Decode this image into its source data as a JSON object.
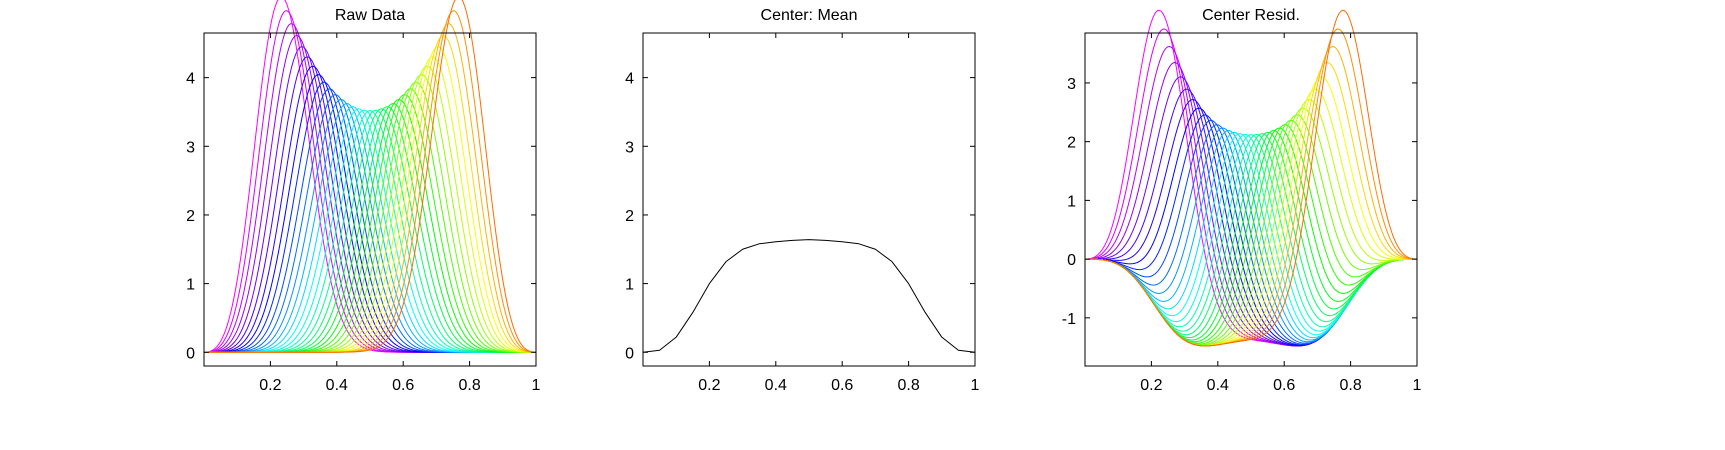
{
  "chart_data": [
    {
      "type": "line",
      "title": "Raw Data",
      "xlim": [
        0,
        1
      ],
      "ylim": [
        -0.2,
        4.65
      ],
      "xticks": [
        0.2,
        0.4,
        0.6,
        0.8,
        1
      ],
      "xtick_labels": [
        "0.2",
        "0.4",
        "0.6",
        "0.8",
        "1"
      ],
      "yticks": [
        0,
        1,
        2,
        3,
        4
      ],
      "ytick_labels": [
        "0",
        "1",
        "2",
        "3",
        "4"
      ],
      "grid": false,
      "series_count": 33,
      "series_description": "Family of unimodal bumps whose peaks move from x≈0.19 (magenta, height ≈4.45) through a trough near x≈0.5 (height ≈3.52) to x≈0.81 (orange, height ≈4.45), colored with a rainbow colormap.",
      "peak_envelope": {
        "x": [
          0.19,
          0.25,
          0.3,
          0.35,
          0.4,
          0.45,
          0.5,
          0.55,
          0.6,
          0.65,
          0.7,
          0.75,
          0.81
        ],
        "y": [
          4.45,
          4.15,
          3.95,
          3.8,
          3.68,
          3.57,
          3.52,
          3.57,
          3.68,
          3.8,
          3.95,
          4.15,
          4.45
        ]
      }
    },
    {
      "type": "line",
      "title": "Center: Mean",
      "xlim": [
        0,
        1
      ],
      "ylim": [
        -0.2,
        4.65
      ],
      "xticks": [
        0.2,
        0.4,
        0.6,
        0.8,
        1
      ],
      "xtick_labels": [
        "0.2",
        "0.4",
        "0.6",
        "0.8",
        "1"
      ],
      "yticks": [
        0,
        1,
        2,
        3,
        4
      ],
      "ytick_labels": [
        "0",
        "1",
        "2",
        "3",
        "4"
      ],
      "grid": false,
      "series": [
        {
          "color": "#000000",
          "x": [
            0.0,
            0.05,
            0.1,
            0.15,
            0.2,
            0.25,
            0.3,
            0.35,
            0.4,
            0.45,
            0.5,
            0.55,
            0.6,
            0.65,
            0.7,
            0.75,
            0.8,
            0.85,
            0.9,
            0.95,
            1.0
          ],
          "y": [
            0.0,
            0.03,
            0.22,
            0.58,
            1.0,
            1.32,
            1.5,
            1.58,
            1.61,
            1.63,
            1.64,
            1.63,
            1.61,
            1.58,
            1.5,
            1.32,
            1.0,
            0.58,
            0.22,
            0.03,
            0.0
          ]
        }
      ]
    },
    {
      "type": "line",
      "title": "Center Resid.",
      "xlim": [
        0,
        1
      ],
      "ylim": [
        -1.82,
        3.85
      ],
      "xticks": [
        0.2,
        0.4,
        0.6,
        0.8,
        1
      ],
      "xtick_labels": [
        "0.2",
        "0.4",
        "0.6",
        "0.8",
        "1"
      ],
      "yticks": [
        -1,
        0,
        1,
        2,
        3
      ],
      "ytick_labels": [
        "-1",
        "0",
        "1",
        "2",
        "3"
      ],
      "grid": false,
      "series_count": 33,
      "series_description": "Residuals (raw curves minus the mean curve) with the same rainbow coloring; peaks reach ≈3.65 near x≈0.17 and x≈0.83, dipping to about -1.6 near x≈0.5.",
      "peak_envelope": {
        "x": [
          0.17,
          0.25,
          0.3,
          0.35,
          0.4,
          0.45,
          0.5,
          0.55,
          0.6,
          0.65,
          0.7,
          0.75,
          0.83
        ],
        "y": [
          3.65,
          2.78,
          2.4,
          2.2,
          2.05,
          1.92,
          1.88,
          1.92,
          2.05,
          2.2,
          2.4,
          2.78,
          3.65
        ]
      }
    }
  ]
}
